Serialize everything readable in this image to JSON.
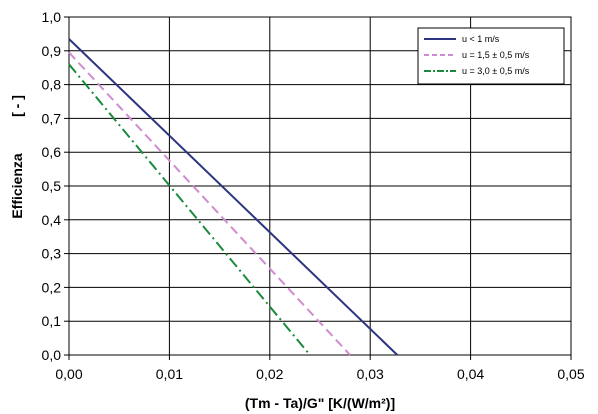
{
  "chart_data": {
    "type": "line",
    "xlabel": "(Tm - Ta)/G\"  [K/(W/m²)]",
    "ylabel": "Efficienza",
    "ylabel_unit": "[ - ]",
    "xlim": [
      0,
      0.05
    ],
    "ylim": [
      0,
      1.0
    ],
    "grid": true,
    "legend_position": "top-right",
    "x_ticks": [
      0,
      0.01,
      0.02,
      0.03,
      0.04,
      0.05
    ],
    "y_ticks": [
      0,
      0.1,
      0.2,
      0.3,
      0.4,
      0.5,
      0.6,
      0.7,
      0.8,
      0.9,
      1.0
    ],
    "x_tick_labels": [
      "0,00",
      "0,01",
      "0,02",
      "0,03",
      "0,04",
      "0,05"
    ],
    "y_tick_labels": [
      "0,0",
      "0,1",
      "0,2",
      "0,3",
      "0,4",
      "0,5",
      "0,6",
      "0,7",
      "0,8",
      "0,9",
      "1,0"
    ],
    "series": [
      {
        "name": "u < 1 m/s",
        "color": "#2e3580",
        "dash": "solid",
        "x": [
          0,
          0.0327
        ],
        "y": [
          0.935,
          0
        ]
      },
      {
        "name": "u = 1,5 ± 0,5 m/s",
        "color": "#d08cd0",
        "dash": "dashed",
        "x": [
          0,
          0.028
        ],
        "y": [
          0.895,
          0
        ]
      },
      {
        "name": "u = 3,0 ± 0,5 m/s",
        "color": "#1b8a3c",
        "dash": "dashdot",
        "x": [
          0,
          0.024
        ],
        "y": [
          0.86,
          0
        ]
      }
    ]
  }
}
